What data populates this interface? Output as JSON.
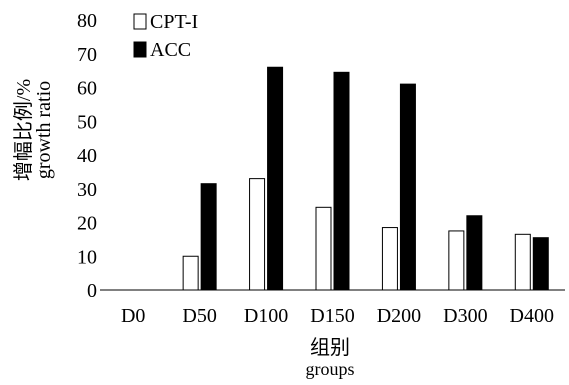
{
  "chart_data": {
    "type": "bar",
    "categories": [
      "D0",
      "D50",
      "D100",
      "D150",
      "D200",
      "D300",
      "D400"
    ],
    "series": [
      {
        "name": "CPT-I",
        "values": [
          0,
          10,
          33,
          24.5,
          18.5,
          17.5,
          16.5
        ],
        "color": "#ffffff"
      },
      {
        "name": "ACC",
        "values": [
          0,
          31.5,
          66,
          64.5,
          61,
          22,
          15.5
        ],
        "color": "#000000"
      }
    ],
    "ylim": [
      0,
      80
    ],
    "yticks": [
      0,
      10,
      20,
      30,
      40,
      50,
      60,
      70,
      80
    ],
    "title": "",
    "xlabel": [
      "组别",
      "groups"
    ],
    "ylabel": [
      "增幅比例/%",
      "growth ratio"
    ],
    "grid": false,
    "legend_position": "top-left"
  }
}
